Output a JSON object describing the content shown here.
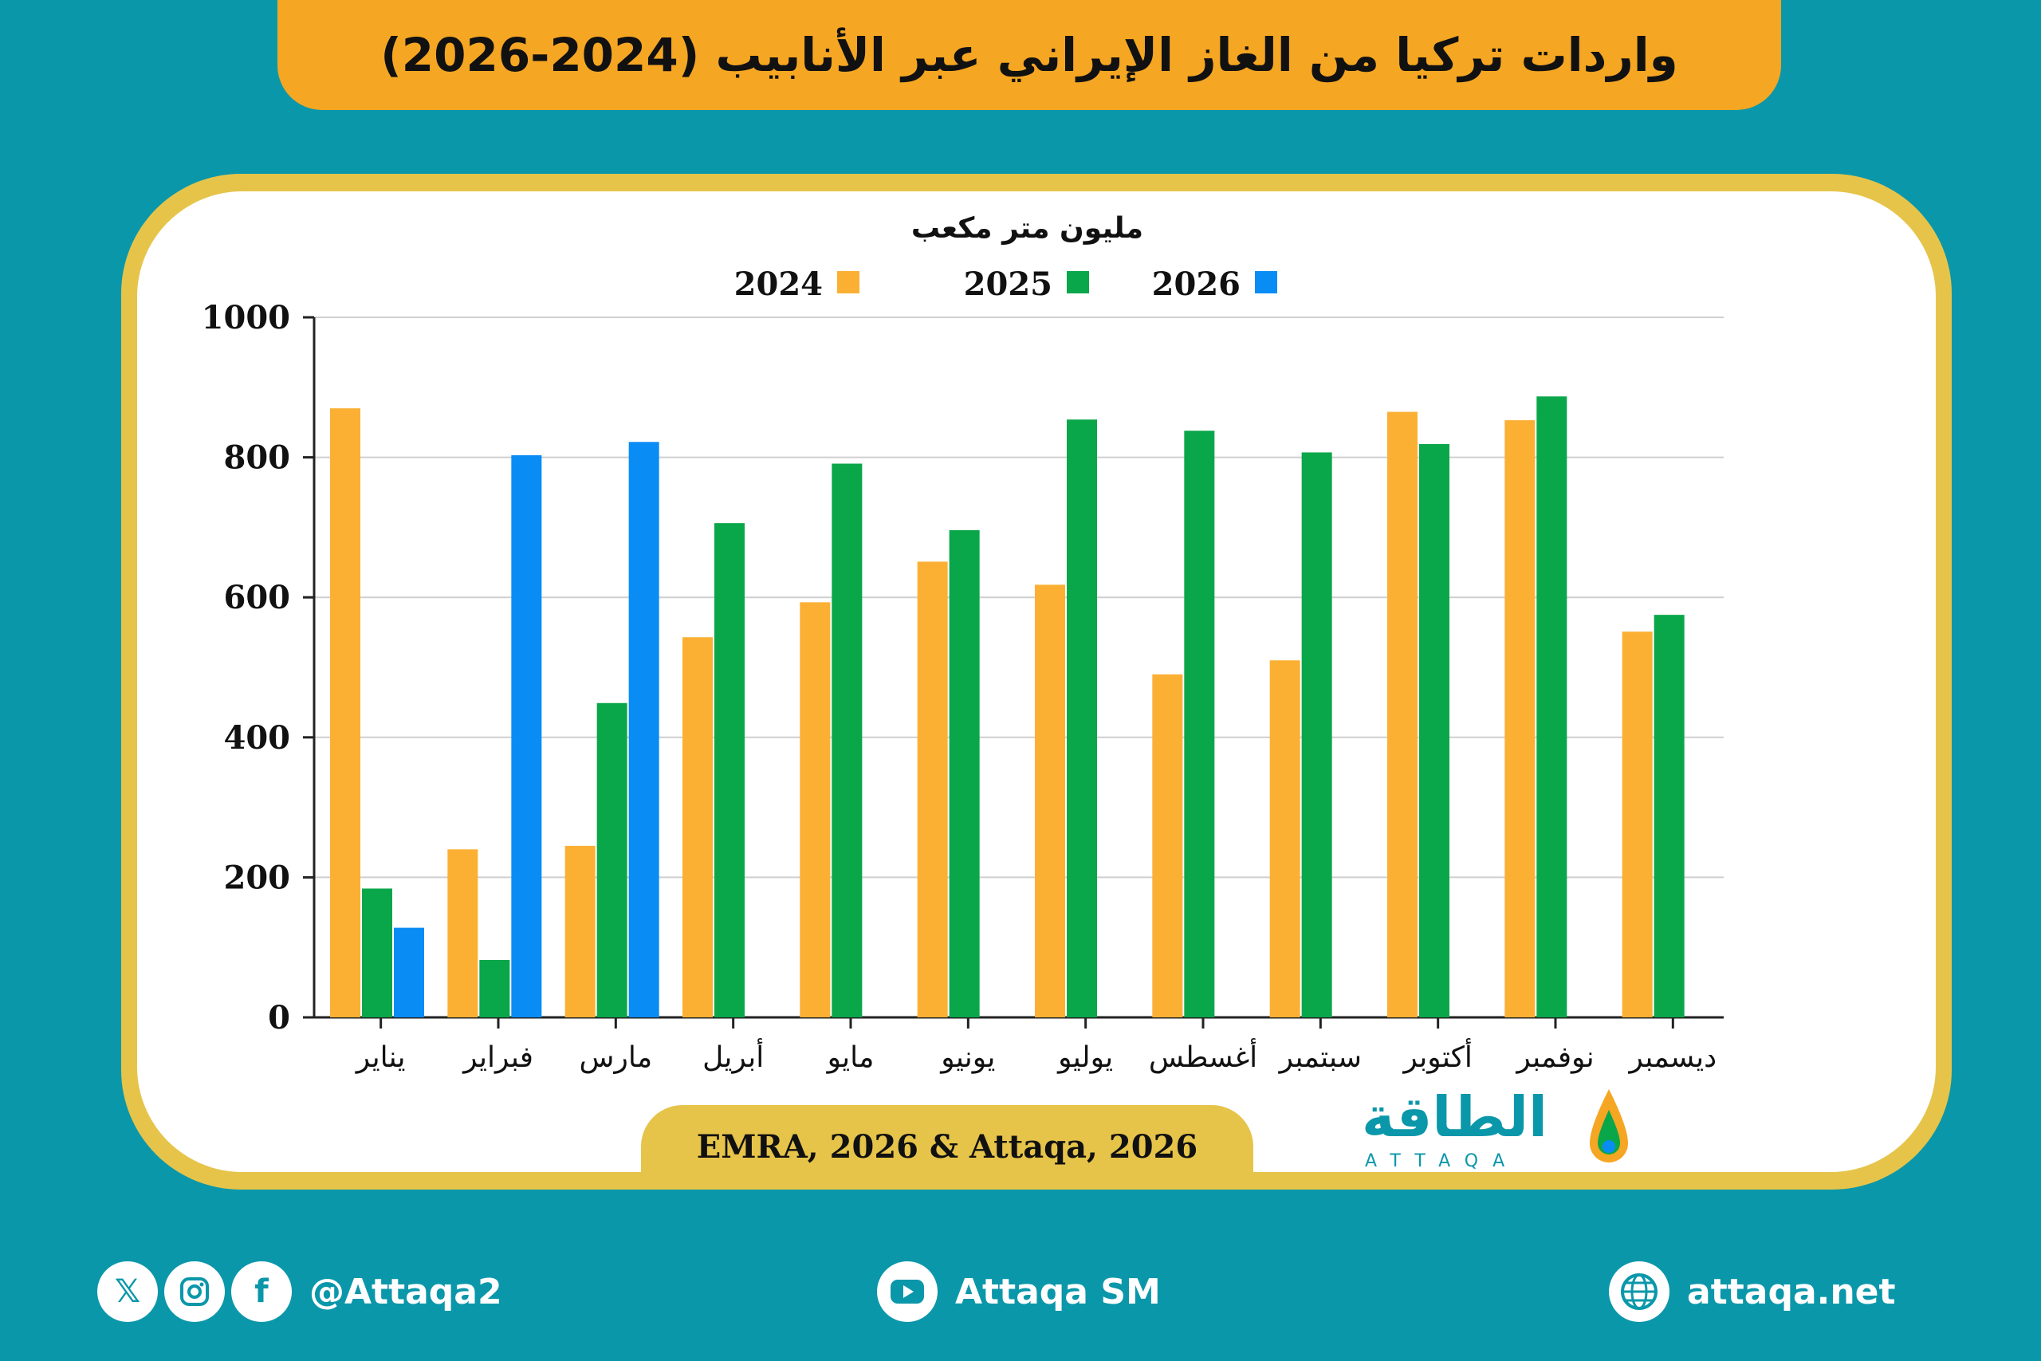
{
  "title": "واردات تركيا من الغاز الإيراني عبر الأنابيب (2024-2026)",
  "source": "EMRA, 2026 & Attaqa, 2026",
  "logo": {
    "name": "الطاقة",
    "sub": "ATTAQA"
  },
  "footer": {
    "social_handle": "@Attaqa2",
    "youtube": "Attaqa SM",
    "website": "attaqa.net",
    "icons": [
      "x-icon",
      "instagram-icon",
      "facebook-icon",
      "youtube-icon",
      "globe-icon"
    ]
  },
  "colors": {
    "background": "#0b97aa",
    "banner": "#f5a623",
    "frame": "#e6c44a",
    "series_2024": "#fbb034",
    "series_2025": "#0aa64a",
    "series_2026": "#0a8cf5"
  },
  "chart_data": {
    "type": "bar",
    "unit_label": "مليون متر مكعب",
    "categories": [
      "يناير",
      "فبراير",
      "مارس",
      "أبريل",
      "مايو",
      "يونيو",
      "يوليو",
      "أغسطس",
      "سبتمبر",
      "أكتوبر",
      "نوفمبر",
      "ديسمبر"
    ],
    "series": [
      {
        "name": "2024",
        "color": "#fbb034",
        "values": [
          870,
          240,
          245,
          543,
          593,
          651,
          618,
          490,
          510,
          865,
          853,
          551
        ]
      },
      {
        "name": "2025",
        "color": "#0aa64a",
        "values": [
          184,
          82,
          449,
          706,
          791,
          696,
          854,
          838,
          807,
          819,
          887,
          575
        ]
      },
      {
        "name": "2026",
        "color": "#0a8cf5",
        "values": [
          128,
          803,
          822,
          null,
          null,
          null,
          null,
          null,
          null,
          null,
          null,
          null
        ]
      }
    ],
    "ylim": [
      0,
      1000
    ],
    "yticks": [
      0,
      200,
      400,
      600,
      800,
      1000
    ],
    "grid": true,
    "legend_position": "top"
  }
}
